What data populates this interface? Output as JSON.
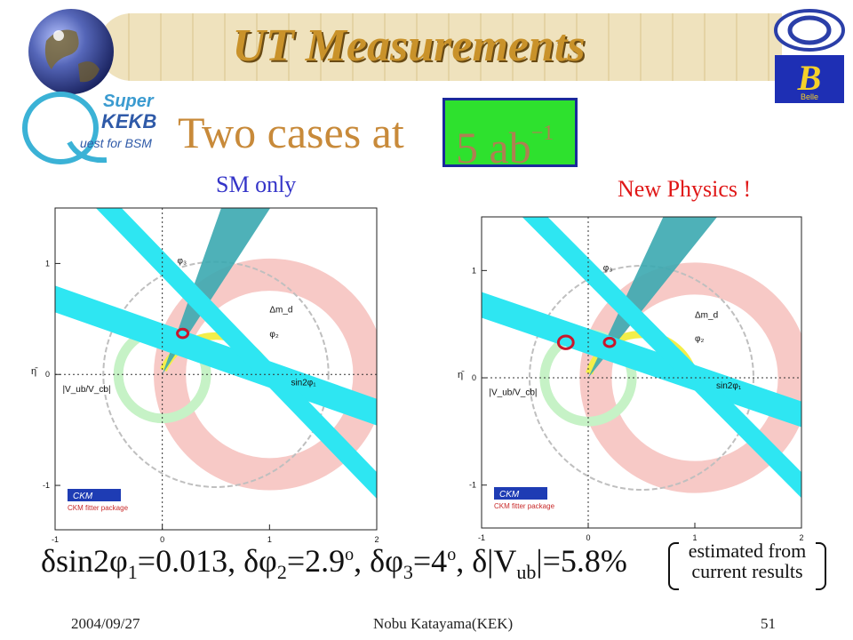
{
  "slide": {
    "title": "UT Measurements",
    "subtitle": "Two cases at",
    "luminosity": "5 ab",
    "luminosity_exp": "−1",
    "summary_html": "δsin2φ<sub>1</sub>=0.013, δφ<sub>2</sub>=2.9<sup>o</sup>, δφ<sub>3</sub>=4<sup>o</sup>, δ|V<sub>ub</sub>|=5.8%",
    "note_line1": "estimated from",
    "note_line2": "current results",
    "footer_date": "2004/09/27",
    "footer_author": "Nobu Katayama(KEK)",
    "footer_page": "51",
    "logo_kekb": "Super KEKB Quest for BSM",
    "logo_belle": "Belle"
  },
  "chart_data": [
    {
      "type": "scatter",
      "title": "SM only",
      "xlabel": "",
      "ylabel": "η̄",
      "xlim": [
        -1,
        2
      ],
      "ylim": [
        -1.4,
        1.5
      ],
      "xticks": [
        "-1",
        "0",
        "1",
        "2"
      ],
      "yticks": [
        "-1",
        "0",
        "1"
      ],
      "grid": false,
      "constraints": [
        {
          "name": "φ3",
          "label": "φ₃",
          "color": "#3ba9b0"
        },
        {
          "name": "Δmd",
          "label": "Δm_d",
          "color": "#f7c9c6"
        },
        {
          "name": "φ2",
          "label": "φ₂",
          "color": "#f3ee4a"
        },
        {
          "name": "sin2φ1",
          "label": "sin2φ₁",
          "color": "#2ee6f2"
        },
        {
          "name": "|Vub/Vcb|",
          "label": "|V_ub/V_cb|",
          "color": "#c6f2c6"
        }
      ],
      "apex": {
        "rho": 0.19,
        "eta": 0.37
      },
      "apex_color": "#c8172c",
      "phi3_angle_deg": 63,
      "logo": "CKM fitter package"
    },
    {
      "type": "scatter",
      "title": "New Physics !",
      "xlabel": "",
      "ylabel": "η̄",
      "xlim": [
        -1,
        2
      ],
      "ylim": [
        -1.4,
        1.5
      ],
      "xticks": [
        "-1",
        "0",
        "1",
        "2"
      ],
      "yticks": [
        "-1",
        "0",
        "1"
      ],
      "grid": false,
      "constraints": [
        {
          "name": "φ3",
          "label": "φ₃",
          "color": "#3ba9b0"
        },
        {
          "name": "Δmd",
          "label": "Δm_d",
          "color": "#f7c9c6"
        },
        {
          "name": "φ2",
          "label": "φ₂",
          "color": "#f3ee4a"
        },
        {
          "name": "sin2φ1",
          "label": "sin2φ₁",
          "color": "#2ee6f2"
        },
        {
          "name": "|Vub/Vcb|",
          "label": "|V_ub/V_cb|",
          "color": "#c6f2c6"
        }
      ],
      "apex": {
        "rho": 0.2,
        "eta": 0.33
      },
      "apex2": {
        "rho": -0.21,
        "eta": 0.33
      },
      "apex_color": "#c8172c",
      "phi3_angle_deg": 58,
      "logo": "CKM fitter package"
    }
  ]
}
